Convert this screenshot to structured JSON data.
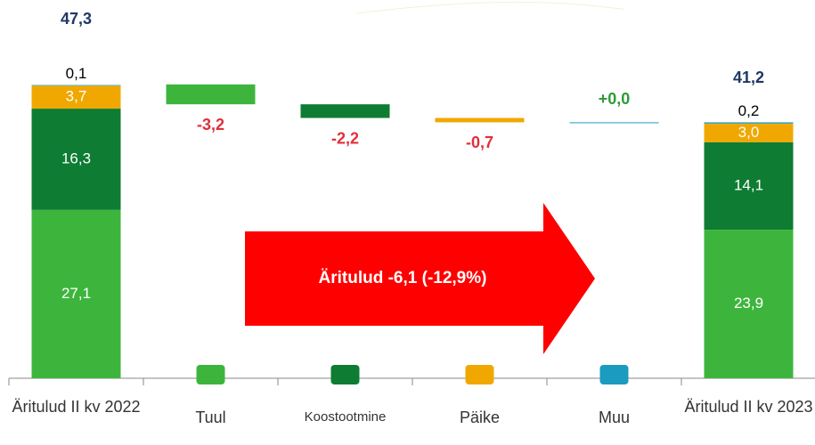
{
  "chart_data": {
    "type": "waterfall",
    "categories": [
      "Äritulud II kv 2022",
      "Tuul",
      "Koostootmine",
      "Päike",
      "Muu",
      "Äritulud II kv 2023"
    ],
    "series": [
      {
        "name": "Tuul",
        "color": "#3db53d",
        "label_color": "#ffffff",
        "values": [
          27.1,
          null,
          null,
          null,
          null,
          23.9
        ],
        "value_labels": [
          "27,1",
          null,
          null,
          null,
          null,
          "23,9"
        ]
      },
      {
        "name": "Koostootmine",
        "color": "#0e7c32",
        "label_color": "#ffffff",
        "values": [
          16.3,
          null,
          null,
          null,
          null,
          14.1
        ],
        "value_labels": [
          "16,3",
          null,
          null,
          null,
          null,
          "14,1"
        ]
      },
      {
        "name": "Päike",
        "color": "#f0a800",
        "label_color": "#ffffff",
        "values": [
          3.7,
          null,
          null,
          null,
          null,
          3.0
        ],
        "value_labels": [
          "3,7",
          null,
          null,
          null,
          null,
          "3,0"
        ]
      },
      {
        "name": "Muu",
        "color": "#1a9bbf",
        "label_color": "#000000",
        "values": [
          0.1,
          null,
          null,
          null,
          null,
          0.2
        ],
        "value_labels": [
          "0,1",
          null,
          null,
          null,
          null,
          "0,2"
        ]
      }
    ],
    "deltas": {
      "values": [
        null,
        -3.2,
        -2.2,
        -0.7,
        0.0,
        null
      ],
      "value_labels": [
        null,
        "-3,2",
        "-2,2",
        "-0,7",
        "+0,0",
        null
      ],
      "negative_color": "#e0303a",
      "positive_color": "#2e9a3a"
    },
    "totals": {
      "values": [
        47.3,
        null,
        null,
        null,
        null,
        41.2
      ],
      "value_labels": [
        "47,3",
        null,
        null,
        null,
        null,
        "41,2"
      ],
      "color": "#1f3864"
    },
    "annotation": "Äritulud -6,1 (-12,9%)",
    "ylim": [
      0,
      50
    ]
  }
}
